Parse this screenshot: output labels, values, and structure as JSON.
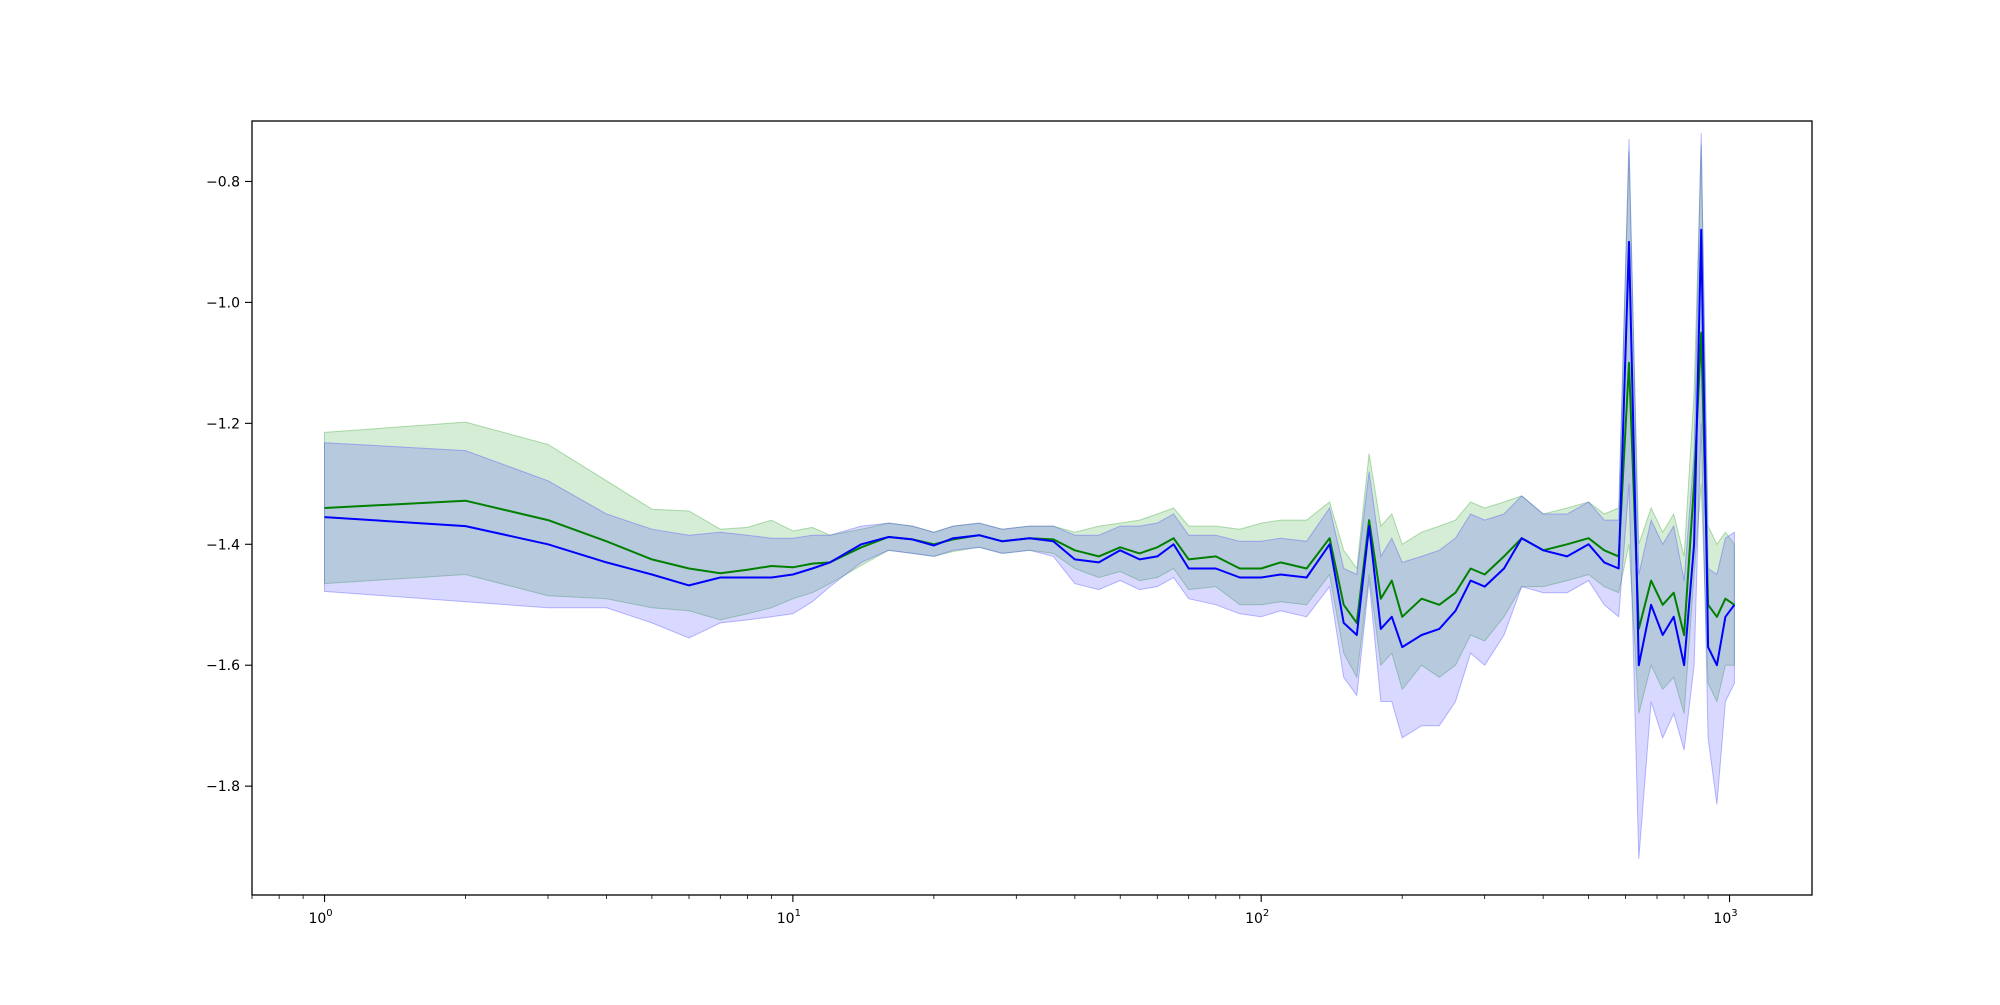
{
  "chart_data": {
    "type": "line",
    "title": "",
    "xlabel": "",
    "ylabel": "",
    "xscale": "log",
    "xlim": [
      0.7,
      1500
    ],
    "ylim": [
      -1.98,
      -0.7
    ],
    "grid": false,
    "legend": "none",
    "x_tick_labels": [
      {
        "value": 1,
        "base": "10",
        "exp": "0"
      },
      {
        "value": 10,
        "base": "10",
        "exp": "1"
      },
      {
        "value": 100,
        "base": "10",
        "exp": "2"
      },
      {
        "value": 1000,
        "base": "10",
        "exp": "3"
      }
    ],
    "y_ticks": [
      {
        "value": -0.8,
        "label": "−0.8"
      },
      {
        "value": -1.0,
        "label": "−1.0"
      },
      {
        "value": -1.2,
        "label": "−1.2"
      },
      {
        "value": -1.4,
        "label": "−1.4"
      },
      {
        "value": -1.6,
        "label": "−1.6"
      },
      {
        "value": -1.8,
        "label": "−1.8"
      }
    ],
    "series": [
      {
        "color": "#008000",
        "band_color": "#2ca02c",
        "points": [
          [
            1,
            -1.34,
            -1.465,
            -1.215
          ],
          [
            2,
            -1.328,
            -1.45,
            -1.198
          ],
          [
            3,
            -1.36,
            -1.485,
            -1.235
          ],
          [
            4,
            -1.395,
            -1.49,
            -1.295
          ],
          [
            5,
            -1.425,
            -1.505,
            -1.342
          ],
          [
            6,
            -1.44,
            -1.51,
            -1.345
          ],
          [
            7,
            -1.448,
            -1.525,
            -1.375
          ],
          [
            8,
            -1.442,
            -1.515,
            -1.372
          ],
          [
            9,
            -1.436,
            -1.505,
            -1.36
          ],
          [
            10,
            -1.438,
            -1.49,
            -1.378
          ],
          [
            11,
            -1.432,
            -1.48,
            -1.372
          ],
          [
            12,
            -1.43,
            -1.465,
            -1.385
          ],
          [
            14,
            -1.405,
            -1.435,
            -1.375
          ],
          [
            16,
            -1.388,
            -1.41,
            -1.365
          ],
          [
            18,
            -1.392,
            -1.415,
            -1.37
          ],
          [
            20,
            -1.4,
            -1.42,
            -1.38
          ],
          [
            22,
            -1.392,
            -1.412,
            -1.37
          ],
          [
            25,
            -1.385,
            -1.405,
            -1.365
          ],
          [
            28,
            -1.395,
            -1.415,
            -1.375
          ],
          [
            32,
            -1.39,
            -1.41,
            -1.37
          ],
          [
            36,
            -1.392,
            -1.415,
            -1.37
          ],
          [
            40,
            -1.41,
            -1.44,
            -1.38
          ],
          [
            45,
            -1.42,
            -1.455,
            -1.37
          ],
          [
            50,
            -1.405,
            -1.445,
            -1.365
          ],
          [
            55,
            -1.415,
            -1.46,
            -1.36
          ],
          [
            60,
            -1.405,
            -1.455,
            -1.35
          ],
          [
            65,
            -1.39,
            -1.44,
            -1.34
          ],
          [
            70,
            -1.425,
            -1.475,
            -1.37
          ],
          [
            80,
            -1.42,
            -1.47,
            -1.37
          ],
          [
            90,
            -1.44,
            -1.5,
            -1.375
          ],
          [
            100,
            -1.44,
            -1.5,
            -1.365
          ],
          [
            110,
            -1.43,
            -1.495,
            -1.36
          ],
          [
            125,
            -1.44,
            -1.5,
            -1.36
          ],
          [
            140,
            -1.39,
            -1.45,
            -1.33
          ],
          [
            150,
            -1.5,
            -1.58,
            -1.41
          ],
          [
            160,
            -1.53,
            -1.62,
            -1.44
          ],
          [
            170,
            -1.36,
            -1.45,
            -1.25
          ],
          [
            180,
            -1.49,
            -1.6,
            -1.37
          ],
          [
            190,
            -1.46,
            -1.58,
            -1.35
          ],
          [
            200,
            -1.52,
            -1.64,
            -1.4
          ],
          [
            220,
            -1.49,
            -1.6,
            -1.38
          ],
          [
            240,
            -1.5,
            -1.62,
            -1.37
          ],
          [
            260,
            -1.48,
            -1.6,
            -1.36
          ],
          [
            280,
            -1.44,
            -1.55,
            -1.33
          ],
          [
            300,
            -1.45,
            -1.56,
            -1.34
          ],
          [
            330,
            -1.42,
            -1.52,
            -1.33
          ],
          [
            360,
            -1.39,
            -1.47,
            -1.32
          ],
          [
            400,
            -1.41,
            -1.47,
            -1.35
          ],
          [
            450,
            -1.4,
            -1.46,
            -1.34
          ],
          [
            500,
            -1.39,
            -1.45,
            -1.33
          ],
          [
            540,
            -1.41,
            -1.47,
            -1.35
          ],
          [
            580,
            -1.42,
            -1.48,
            -1.34
          ],
          [
            610,
            -1.1,
            -1.4,
            -0.75
          ],
          [
            640,
            -1.54,
            -1.68,
            -1.4
          ],
          [
            680,
            -1.46,
            -1.6,
            -1.34
          ],
          [
            720,
            -1.5,
            -1.64,
            -1.38
          ],
          [
            760,
            -1.48,
            -1.62,
            -1.35
          ],
          [
            800,
            -1.55,
            -1.68,
            -1.42
          ],
          [
            840,
            -1.3,
            -1.45,
            -1.15
          ],
          [
            870,
            -1.05,
            -1.3,
            -0.74
          ],
          [
            900,
            -1.5,
            -1.63,
            -1.37
          ],
          [
            940,
            -1.52,
            -1.66,
            -1.4
          ],
          [
            980,
            -1.49,
            -1.6,
            -1.38
          ],
          [
            1024,
            -1.5,
            -1.6,
            -1.4
          ]
        ]
      },
      {
        "color": "#0000ff",
        "band_color": "#4040ff",
        "points": [
          [
            1,
            -1.355,
            -1.478,
            -1.232
          ],
          [
            2,
            -1.37,
            -1.495,
            -1.245
          ],
          [
            3,
            -1.4,
            -1.505,
            -1.295
          ],
          [
            4,
            -1.43,
            -1.505,
            -1.35
          ],
          [
            5,
            -1.45,
            -1.53,
            -1.375
          ],
          [
            6,
            -1.468,
            -1.555,
            -1.385
          ],
          [
            7,
            -1.455,
            -1.53,
            -1.38
          ],
          [
            8,
            -1.455,
            -1.525,
            -1.385
          ],
          [
            9,
            -1.455,
            -1.52,
            -1.39
          ],
          [
            10,
            -1.45,
            -1.515,
            -1.39
          ],
          [
            11,
            -1.44,
            -1.495,
            -1.385
          ],
          [
            12,
            -1.43,
            -1.47,
            -1.385
          ],
          [
            14,
            -1.4,
            -1.43,
            -1.37
          ],
          [
            16,
            -1.388,
            -1.41,
            -1.365
          ],
          [
            18,
            -1.392,
            -1.415,
            -1.37
          ],
          [
            20,
            -1.402,
            -1.42,
            -1.38
          ],
          [
            22,
            -1.39,
            -1.41,
            -1.37
          ],
          [
            25,
            -1.385,
            -1.405,
            -1.365
          ],
          [
            28,
            -1.395,
            -1.415,
            -1.375
          ],
          [
            32,
            -1.39,
            -1.41,
            -1.37
          ],
          [
            36,
            -1.395,
            -1.42,
            -1.37
          ],
          [
            40,
            -1.425,
            -1.465,
            -1.385
          ],
          [
            45,
            -1.43,
            -1.475,
            -1.385
          ],
          [
            50,
            -1.41,
            -1.46,
            -1.37
          ],
          [
            55,
            -1.425,
            -1.475,
            -1.37
          ],
          [
            60,
            -1.42,
            -1.47,
            -1.365
          ],
          [
            65,
            -1.4,
            -1.455,
            -1.35
          ],
          [
            70,
            -1.44,
            -1.49,
            -1.385
          ],
          [
            80,
            -1.44,
            -1.5,
            -1.385
          ],
          [
            90,
            -1.455,
            -1.515,
            -1.395
          ],
          [
            100,
            -1.455,
            -1.52,
            -1.395
          ],
          [
            110,
            -1.45,
            -1.51,
            -1.39
          ],
          [
            125,
            -1.455,
            -1.52,
            -1.395
          ],
          [
            140,
            -1.4,
            -1.47,
            -1.34
          ],
          [
            150,
            -1.53,
            -1.62,
            -1.44
          ],
          [
            160,
            -1.55,
            -1.65,
            -1.45
          ],
          [
            170,
            -1.37,
            -1.46,
            -1.28
          ],
          [
            180,
            -1.54,
            -1.66,
            -1.42
          ],
          [
            190,
            -1.52,
            -1.66,
            -1.39
          ],
          [
            200,
            -1.57,
            -1.72,
            -1.43
          ],
          [
            220,
            -1.55,
            -1.7,
            -1.42
          ],
          [
            240,
            -1.54,
            -1.7,
            -1.41
          ],
          [
            260,
            -1.51,
            -1.66,
            -1.39
          ],
          [
            280,
            -1.46,
            -1.58,
            -1.35
          ],
          [
            300,
            -1.47,
            -1.6,
            -1.36
          ],
          [
            330,
            -1.44,
            -1.55,
            -1.35
          ],
          [
            360,
            -1.39,
            -1.47,
            -1.32
          ],
          [
            400,
            -1.41,
            -1.48,
            -1.35
          ],
          [
            450,
            -1.42,
            -1.48,
            -1.35
          ],
          [
            500,
            -1.4,
            -1.46,
            -1.33
          ],
          [
            540,
            -1.43,
            -1.5,
            -1.36
          ],
          [
            580,
            -1.44,
            -1.52,
            -1.36
          ],
          [
            610,
            -0.9,
            -1.3,
            -0.73
          ],
          [
            640,
            -1.6,
            -1.92,
            -1.45
          ],
          [
            680,
            -1.5,
            -1.66,
            -1.36
          ],
          [
            720,
            -1.55,
            -1.72,
            -1.4
          ],
          [
            760,
            -1.52,
            -1.68,
            -1.37
          ],
          [
            800,
            -1.6,
            -1.74,
            -1.46
          ],
          [
            840,
            -1.4,
            -1.6,
            -1.25
          ],
          [
            870,
            -0.88,
            -1.2,
            -0.72
          ],
          [
            900,
            -1.57,
            -1.72,
            -1.44
          ],
          [
            940,
            -1.6,
            -1.83,
            -1.45
          ],
          [
            980,
            -1.52,
            -1.66,
            -1.39
          ],
          [
            1024,
            -1.5,
            -1.63,
            -1.38
          ]
        ]
      }
    ]
  }
}
